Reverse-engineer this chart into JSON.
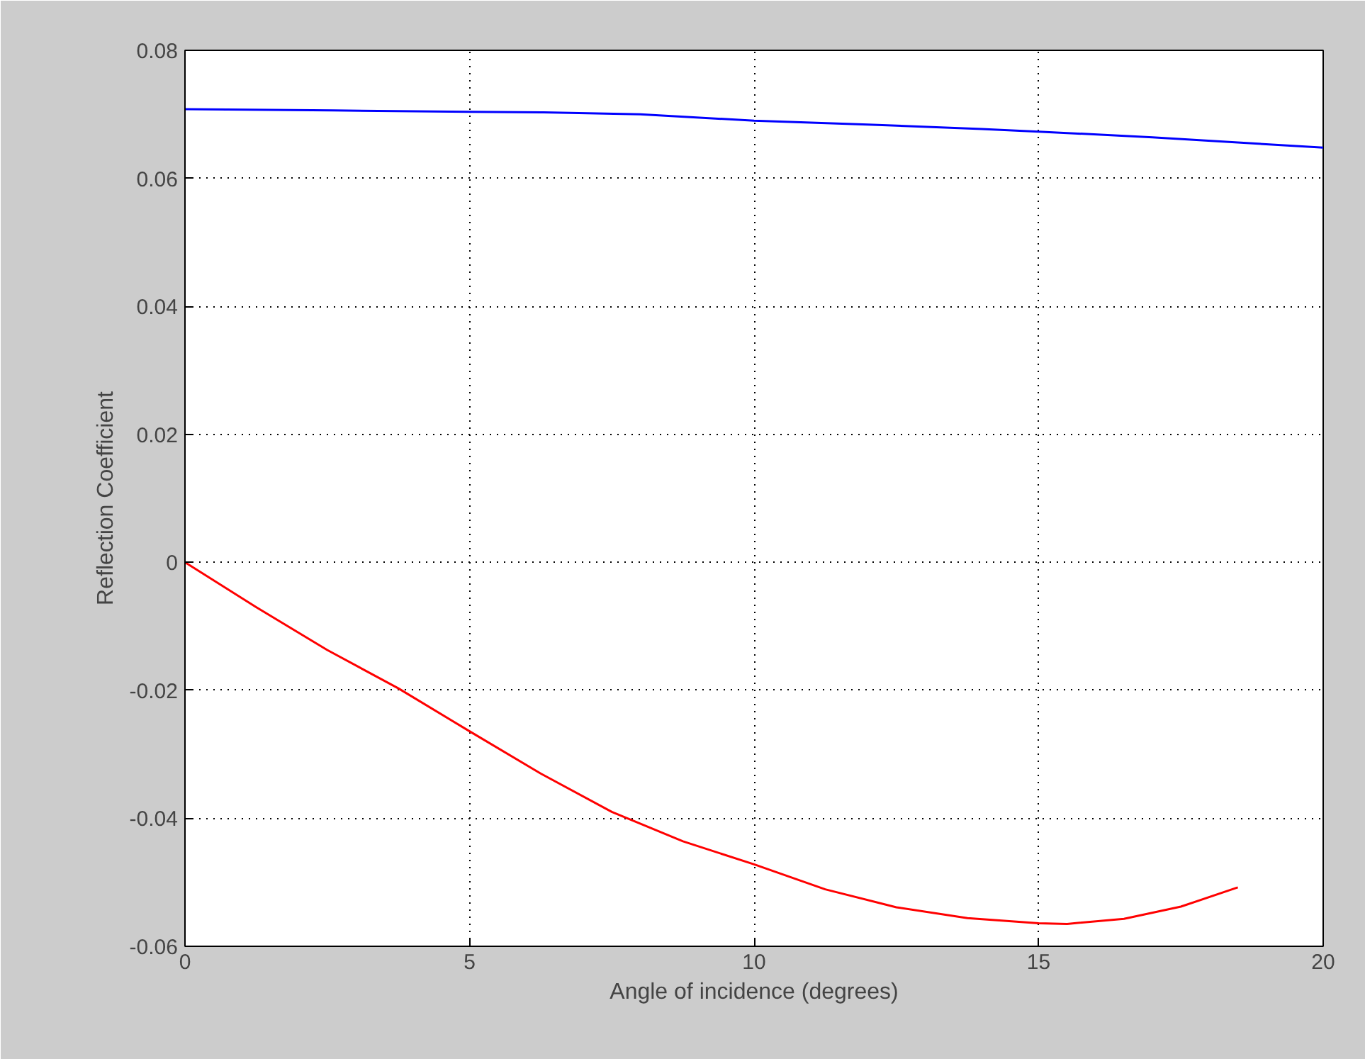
{
  "chart_data": {
    "type": "line",
    "xlabel": "Angle of incidence (degrees)",
    "ylabel": "Reflection Coefficient",
    "xlim": [
      0,
      20
    ],
    "ylim": [
      -0.06,
      0.08
    ],
    "xticks": [
      0,
      5,
      10,
      15,
      20
    ],
    "yticks": [
      -0.06,
      -0.04,
      -0.02,
      0,
      0.02,
      0.04,
      0.06,
      0.08
    ],
    "grid": true,
    "series": [
      {
        "color": "#0000ff",
        "x": [
          0,
          2.6,
          5,
          6.3,
          8,
          10,
          12,
          14,
          15,
          17,
          18.5,
          20
        ],
        "values": [
          0.0708,
          0.0706,
          0.0704,
          0.0703,
          0.07,
          0.069,
          0.0684,
          0.0677,
          0.0673,
          0.0664,
          0.0656,
          0.0648
        ]
      },
      {
        "color": "#ff0000",
        "x": [
          0,
          1.25,
          2.5,
          3.75,
          5,
          6.25,
          7.5,
          8.75,
          10,
          11.25,
          12.5,
          13.75,
          15,
          15.5,
          16.5,
          17.5,
          18.5
        ],
        "values": [
          0,
          -0.007,
          -0.0137,
          -0.0197,
          -0.0264,
          -0.033,
          -0.039,
          -0.0436,
          -0.0472,
          -0.0511,
          -0.0539,
          -0.0556,
          -0.0564,
          -0.0565,
          -0.0557,
          -0.0538,
          -0.0508
        ]
      }
    ]
  }
}
